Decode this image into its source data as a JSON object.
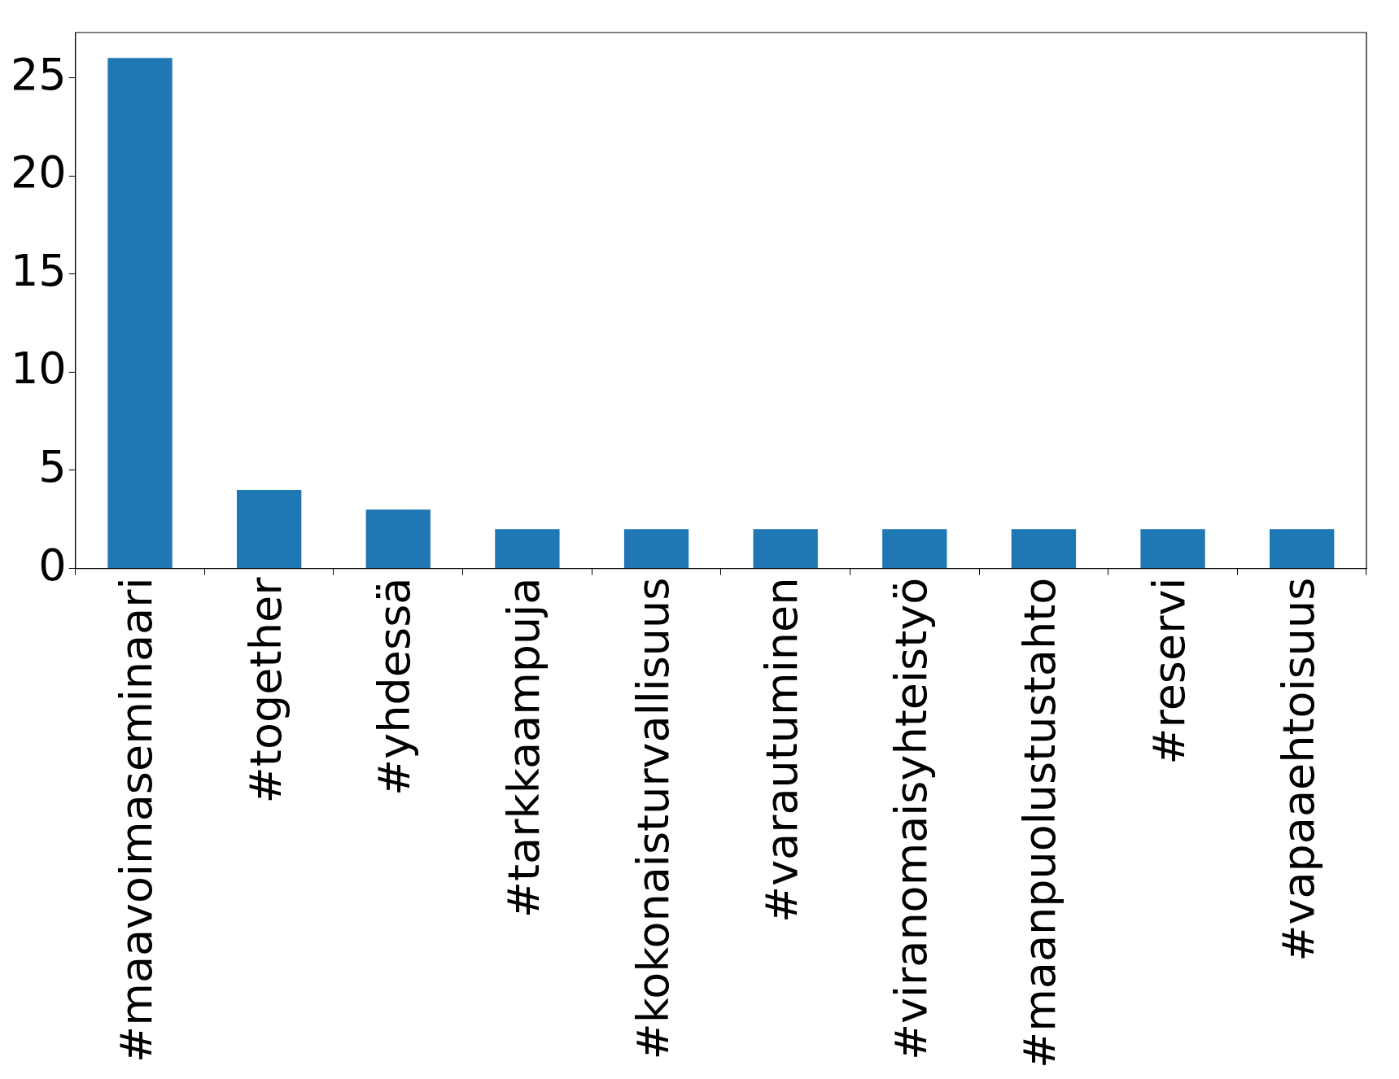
{
  "chart_data": {
    "type": "bar",
    "categories": [
      "#maavoimaseminaari",
      "#together",
      "#yhdessä",
      "#tarkkaampuja",
      "#kokonaisturvallisuus",
      "#varautuminen",
      "#viranomaisyhteistyö",
      "#maanpuolustustahto",
      "#reservi",
      "#vapaaehtoisuus"
    ],
    "values": [
      26,
      4,
      3,
      2,
      2,
      2,
      2,
      2,
      2,
      2
    ],
    "color": "#1f77b4",
    "ylim": [
      0,
      27.3
    ],
    "yticks": [
      0,
      5,
      10,
      15,
      20,
      25
    ]
  }
}
